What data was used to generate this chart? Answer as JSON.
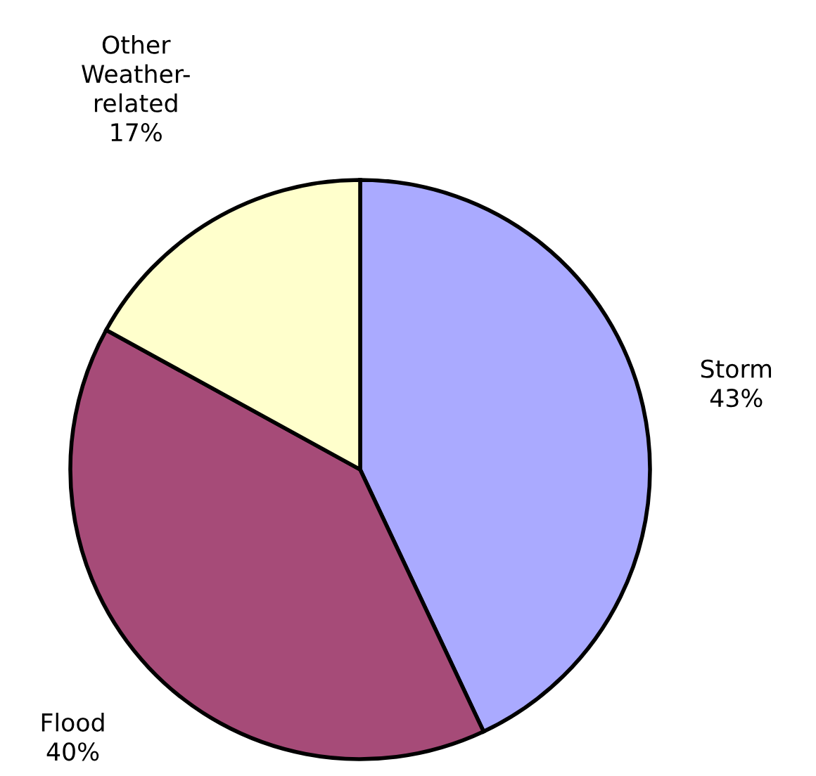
{
  "chart_data": {
    "type": "pie",
    "categories": [
      "Storm",
      "Flood",
      "Other\nWeather-\nrelated"
    ],
    "values": [
      43,
      40,
      17
    ],
    "value_labels": [
      "43%",
      "40%",
      "17%"
    ],
    "colors": [
      "#aaaaff",
      "#a64b78",
      "#ffffcc"
    ]
  }
}
